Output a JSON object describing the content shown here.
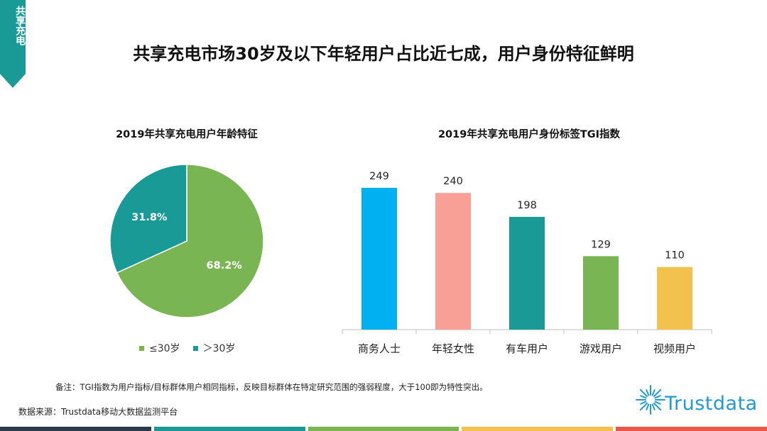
{
  "section_tab": "共享充电",
  "title": "共享充电市场30岁及以下年轻用户占比近七成，用户身份特征鲜明",
  "chart_data": [
    {
      "type": "pie",
      "title": "2019年共享充电用户年龄特征",
      "slices": [
        {
          "label": "≤30岁",
          "value": 68.2,
          "display": "68.2%",
          "color": "#7ab554"
        },
        {
          "label": "＞30岁",
          "value": 31.8,
          "display": "31.8%",
          "color": "#1a9a96"
        }
      ],
      "legend_position": "bottom"
    },
    {
      "type": "bar",
      "title": "2019年共享充电用户身份标签TGI指数",
      "categories": [
        "商务人士",
        "年轻女性",
        "有车用户",
        "游戏用户",
        "视频用户"
      ],
      "values": [
        249,
        240,
        198,
        129,
        110
      ],
      "colors": [
        "#00b0f0",
        "#f8a096",
        "#1a9a96",
        "#7ab554",
        "#f2c14e"
      ],
      "ylim": [
        0,
        290
      ],
      "grid": false
    }
  ],
  "footnote": "备注：TGI指数为用户指标/目标群体用户相同指标，反映目标群体在特定研究范围的强弱程度，大于100即为特性突出。",
  "source": "数据来源：Trustdata移动大数据监测平台",
  "logo_text": "Trustdata",
  "bottom_bar_colors": [
    "#2b3a4a",
    "#1a9a96",
    "#7ab554",
    "#f2c14e",
    "#e8594a"
  ]
}
